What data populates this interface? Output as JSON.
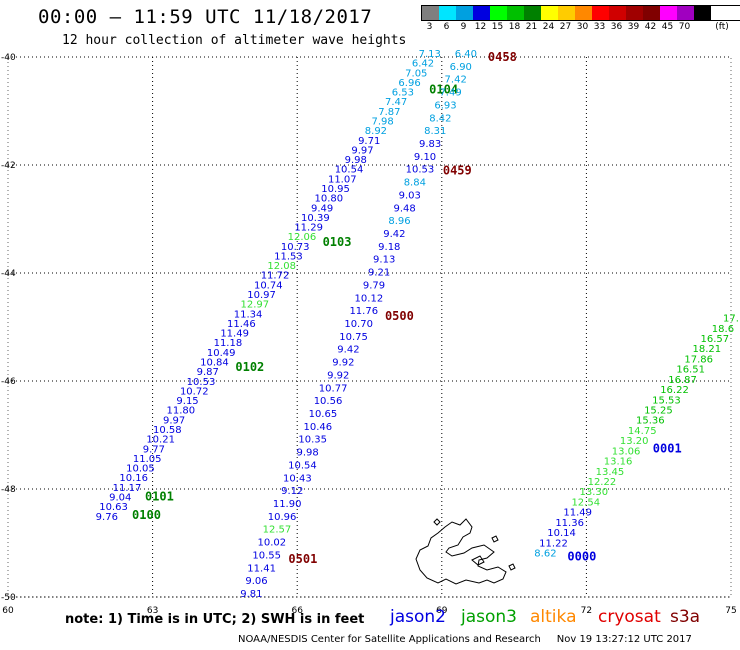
{
  "header": {
    "title": "00:00 – 11:59 UTC 11/18/2017",
    "subtitle": "12 hour collection of altimeter wave heights"
  },
  "legend": {
    "unit": "(ft)",
    "bins": [
      {
        "label": "3",
        "color": "#7f7f7f"
      },
      {
        "label": "6",
        "color": "#00e5ff"
      },
      {
        "label": "9",
        "color": "#00a0e0"
      },
      {
        "label": "12",
        "color": "#0000e0"
      },
      {
        "label": "15",
        "color": "#00ff00"
      },
      {
        "label": "18",
        "color": "#00c000"
      },
      {
        "label": "21",
        "color": "#008000"
      },
      {
        "label": "24",
        "color": "#ffff00"
      },
      {
        "label": "27",
        "color": "#ffcc00"
      },
      {
        "label": "30",
        "color": "#ff8800"
      },
      {
        "label": "33",
        "color": "#ff0000"
      },
      {
        "label": "36",
        "color": "#d00000"
      },
      {
        "label": "39",
        "color": "#a00000"
      },
      {
        "label": "42",
        "color": "#800000"
      },
      {
        "label": "45",
        "color": "#ff00ff"
      },
      {
        "label": "70",
        "color": "#a000c0"
      },
      {
        "label": "",
        "color": "#000000"
      }
    ]
  },
  "axes": {
    "lon_labels": [
      "60",
      "63",
      "66",
      "69",
      "72",
      "75"
    ],
    "lat_labels": [
      "-40",
      "-42",
      "-44",
      "-46",
      "-48",
      "-50"
    ]
  },
  "tracks": [
    {
      "id": "track-1",
      "start": [
        62.05,
        -48.57
      ],
      "end": [
        68.75,
        -40.0
      ],
      "values": [
        "9.76",
        "10.63",
        "9.04",
        "11.17",
        "10.16",
        "10.05",
        "11.05",
        "9.77",
        "10.21",
        "10.58",
        "9.97",
        "11.80",
        "9.15",
        "10.72",
        "10.53",
        "9.87",
        "10.84",
        "10.49",
        "11.18",
        "11.49",
        "11.46",
        "11.34",
        "12.97",
        "10.97",
        "10.74",
        "11.72",
        "12.08",
        "11.53",
        "10.73",
        "12.06",
        "11.29",
        "10.39",
        "9.49",
        "10.80",
        "10.95",
        "11.07",
        "10.54",
        "9.98",
        "9.97",
        "9.71",
        "8.92",
        "7.98",
        "7.87",
        "7.47",
        "6.53",
        "6.96",
        "7.05",
        "6.42",
        "7.13"
      ],
      "colors": [
        "#0000e0",
        "#0000e0",
        "#0000e0",
        "#0000e0",
        "#0000e0",
        "#0000e0",
        "#0000e0",
        "#0000e0",
        "#0000e0",
        "#0000e0",
        "#0000e0",
        "#0000e0",
        "#0000e0",
        "#0000e0",
        "#0000e0",
        "#0000e0",
        "#0000e0",
        "#0000e0",
        "#0000e0",
        "#0000e0",
        "#0000e0",
        "#0000e0",
        "#33e033",
        "#0000e0",
        "#0000e0",
        "#0000e0",
        "#33e033",
        "#0000e0",
        "#0000e0",
        "#33e033",
        "#0000e0",
        "#0000e0",
        "#0000e0",
        "#0000e0",
        "#0000e0",
        "#0000e0",
        "#0000e0",
        "#0000e0",
        "#0000e0",
        "#0000e0",
        "#00a0e0",
        "#00a0e0",
        "#00a0e0",
        "#00a0e0",
        "#00a0e0",
        "#00a0e0",
        "#00a0e0",
        "#00a0e0",
        "#00a0e0"
      ],
      "times": [
        {
          "text": "0100",
          "t": 0.01,
          "color": "#008000"
        },
        {
          "text": "0101",
          "t": 0.05,
          "color": "#008000"
        },
        {
          "text": "0102",
          "t": 0.33,
          "color": "#008000"
        },
        {
          "text": "0103",
          "t": 0.6,
          "color": "#008000"
        },
        {
          "text": "0104",
          "t": 0.93,
          "color": "#008000"
        }
      ]
    },
    {
      "id": "track-2",
      "start": [
        65.05,
        -50.0
      ],
      "end": [
        69.5,
        -40.0
      ],
      "values": [
        "9.81",
        "9.06",
        "11.41",
        "10.55",
        "10.02",
        "12.57",
        "10.96",
        "11.90",
        "9.12",
        "10.43",
        "10.54",
        "9.98",
        "10.35",
        "10.46",
        "10.65",
        "10.56",
        "10.77",
        "9.92",
        "9.92",
        "9.42",
        "10.75",
        "10.70",
        "11.76",
        "10.12",
        "9.79",
        "9.21",
        "9.13",
        "9.18",
        "9.42",
        "8.96",
        "9.48",
        "9.03",
        "8.84",
        "10.53",
        "9.10",
        "9.83",
        "8.31",
        "8.42",
        "6.93",
        "7.49",
        "7.42",
        "6.90",
        "6.40"
      ],
      "colors": [
        "#0000e0",
        "#0000e0",
        "#0000e0",
        "#0000e0",
        "#0000e0",
        "#33e033",
        "#0000e0",
        "#0000e0",
        "#0000e0",
        "#0000e0",
        "#0000e0",
        "#0000e0",
        "#0000e0",
        "#0000e0",
        "#0000e0",
        "#0000e0",
        "#0000e0",
        "#0000e0",
        "#0000e0",
        "#0000e0",
        "#0000e0",
        "#0000e0",
        "#0000e0",
        "#0000e0",
        "#0000e0",
        "#0000e0",
        "#0000e0",
        "#0000e0",
        "#0000e0",
        "#00a0e0",
        "#0000e0",
        "#0000e0",
        "#00a0e0",
        "#0000e0",
        "#0000e0",
        "#0000e0",
        "#00a0e0",
        "#00a0e0",
        "#00a0e0",
        "#00a0e0",
        "#00a0e0",
        "#00a0e0",
        "#00a0e0"
      ],
      "times": [
        {
          "text": "0501",
          "t": 0.07,
          "color": "#800000"
        },
        {
          "text": "0500",
          "t": 0.52,
          "color": "#800000"
        },
        {
          "text": "0459",
          "t": 0.79,
          "color": "#800000"
        },
        {
          "text": "0458",
          "t": 1.0,
          "color": "#800000"
        }
      ]
    },
    {
      "id": "track-3",
      "start": [
        71.15,
        -49.25
      ],
      "end": [
        75.0,
        -44.9
      ],
      "values": [
        "8.62",
        "11.22",
        "10.14",
        "11.36",
        "11.49",
        "12.54",
        "13.30",
        "12.22",
        "13.45",
        "13.16",
        "13.06",
        "13.20",
        "14.75",
        "15.36",
        "15.25",
        "15.53",
        "16.22",
        "16.87",
        "16.51",
        "17.86",
        "18.21",
        "16.57",
        "18.6",
        "17."
      ],
      "colors": [
        "#00a0e0",
        "#0000e0",
        "#0000e0",
        "#0000e0",
        "#0000e0",
        "#33e033",
        "#33e033",
        "#33e033",
        "#33e033",
        "#33e033",
        "#33e033",
        "#33e033",
        "#33e033",
        "#00c000",
        "#00c000",
        "#00c000",
        "#00c000",
        "#00c000",
        "#00c000",
        "#00c000",
        "#00c000",
        "#00c000",
        "#00c000",
        "#00c000"
      ],
      "times": [
        {
          "text": "0000",
          "t": 0.0,
          "color": "#0000e0"
        },
        {
          "text": "0001",
          "t": 0.46,
          "color": "#0000e0"
        }
      ]
    }
  ],
  "footer": {
    "note": "note: 1) Time is in UTC; 2) SWH is in feet",
    "credit": "NOAA/NESDIS Center for Satellite Applications and Research     Nov 19 13:27:12 UTC 2017",
    "satellites": [
      {
        "name": "jason2",
        "color": "#0000e0"
      },
      {
        "name": "jason3",
        "color": "#00a000"
      },
      {
        "name": "altika",
        "color": "#ff8800"
      },
      {
        "name": "cryosat",
        "color": "#e00000"
      },
      {
        "name": "s3a",
        "color": "#800000"
      }
    ]
  }
}
